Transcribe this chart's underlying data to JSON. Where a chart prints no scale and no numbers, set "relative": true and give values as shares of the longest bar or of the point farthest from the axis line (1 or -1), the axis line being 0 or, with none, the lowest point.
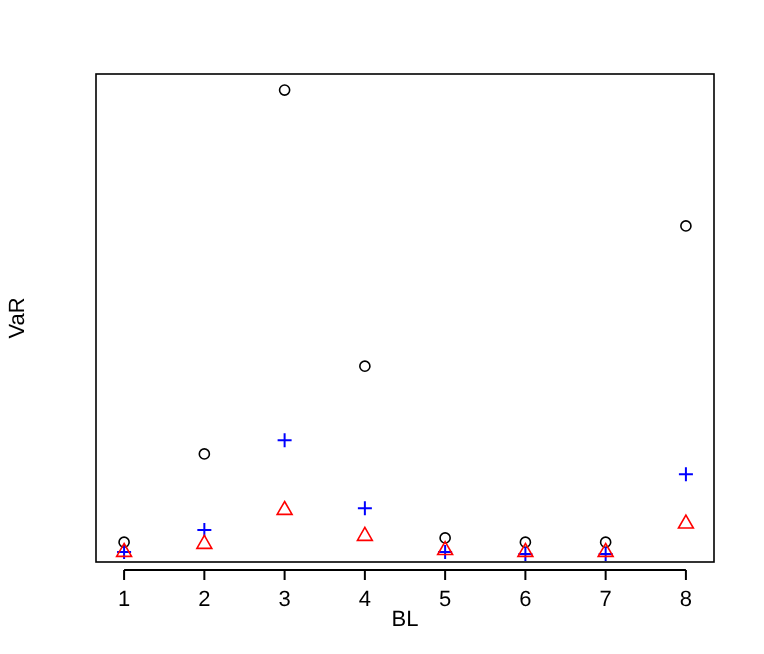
{
  "chart_data": {
    "type": "scatter",
    "relative": true,
    "xlabel": "BL",
    "ylabel": "VaR",
    "x": [
      1,
      2,
      3,
      4,
      5,
      6,
      7,
      8
    ],
    "xlim": [
      0.65,
      8.35
    ],
    "xticks": [
      1,
      2,
      3,
      4,
      5,
      6,
      7,
      8
    ],
    "grid": false,
    "series": [
      {
        "color": "#000000",
        "marker": "circle",
        "values": [
          0.042,
          0.229,
          1,
          0.415,
          0.051,
          0.042,
          0.042,
          0.712
        ]
      },
      {
        "color": "#0000ff",
        "marker": "cross",
        "values": [
          0.021,
          0.068,
          0.258,
          0.114,
          0.021,
          0.017,
          0.017,
          0.186
        ]
      },
      {
        "color": "#ff0000",
        "marker": "triangle",
        "values": [
          0.021,
          0.038,
          0.11,
          0.055,
          0.025,
          0.021,
          0.021,
          0.081
        ]
      }
    ]
  }
}
